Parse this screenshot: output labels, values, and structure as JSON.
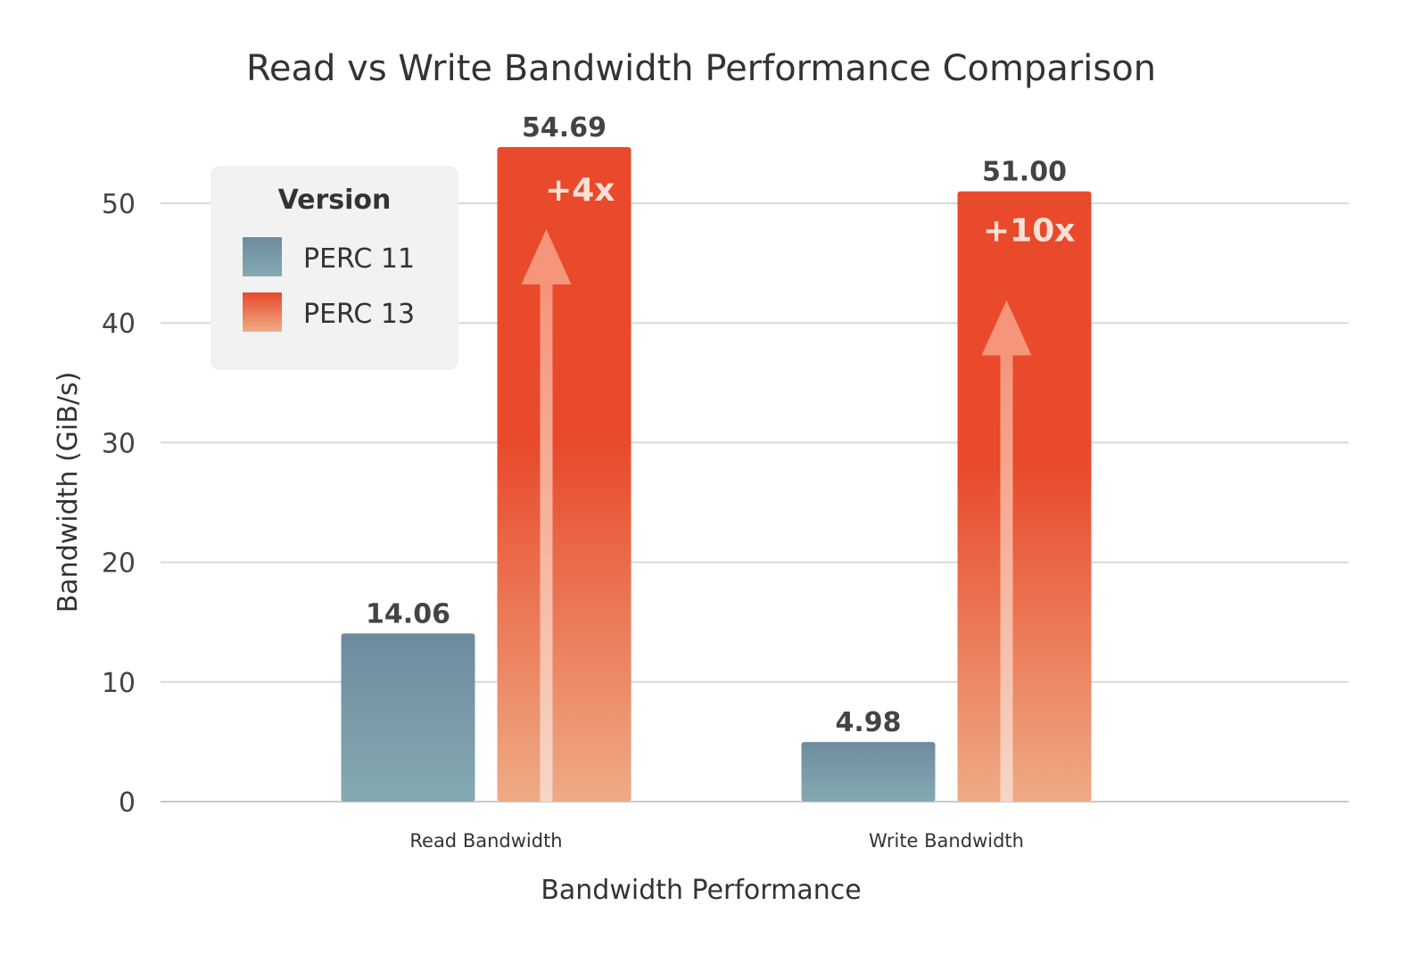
{
  "chart_data": {
    "type": "bar",
    "title": "Read vs Write Bandwidth Performance Comparison",
    "xlabel": "Bandwidth Performance",
    "ylabel": "Bandwidth (GiB/s)",
    "ylim": [
      0,
      55
    ],
    "yticks": [
      0,
      10,
      20,
      30,
      40,
      50
    ],
    "grid": true,
    "legend": {
      "title": "Version",
      "placement": "top-left"
    },
    "categories": [
      "Read Bandwidth",
      "Write Bandwidth"
    ],
    "series": [
      {
        "name": "PERC 11",
        "values": [
          14.06,
          4.98
        ],
        "labels": [
          "14.06",
          "4.98"
        ],
        "color_top": "#6e8b9e",
        "color_bottom": "#84aab2"
      },
      {
        "name": "PERC 13",
        "values": [
          54.69,
          51.0
        ],
        "labels": [
          "54.69",
          "51.00"
        ],
        "color_top": "#e84a2b",
        "color_bottom": "#eeab86"
      }
    ],
    "annotations": [
      "+4x",
      "+10x"
    ]
  }
}
